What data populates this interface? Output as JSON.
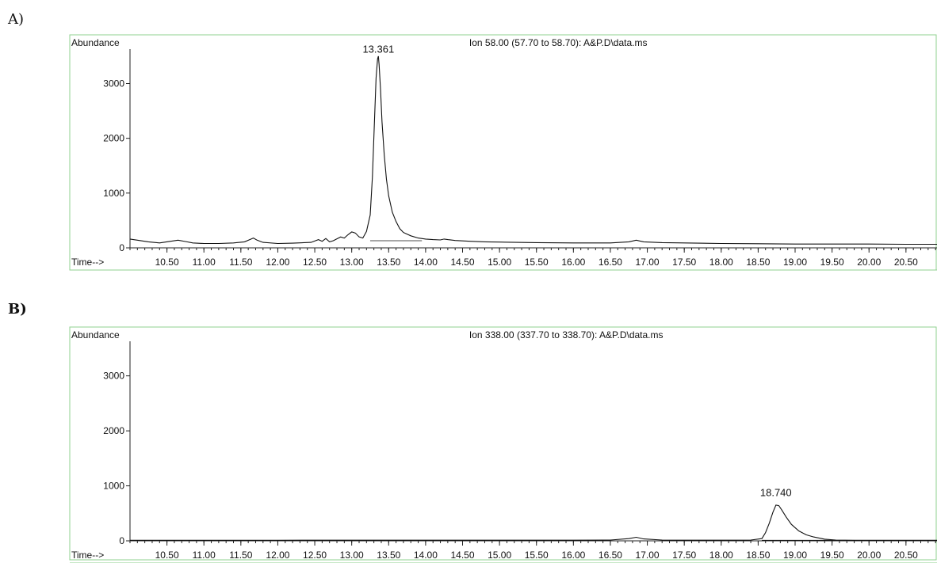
{
  "panels": [
    {
      "label": "A)",
      "chart_data": {
        "type": "line",
        "title": "Ion  58.00 (57.70 to 58.70): A&P.D\\data.ms",
        "ylabel": "Abundance",
        "xlabel": "Time-->",
        "xlim": [
          10.0,
          20.92
        ],
        "ylim": [
          0,
          3600
        ],
        "x_ticks": [
          10.5,
          11.0,
          11.5,
          12.0,
          12.5,
          13.0,
          13.5,
          14.0,
          14.5,
          15.0,
          15.5,
          16.0,
          16.5,
          17.0,
          17.5,
          18.0,
          18.5,
          19.0,
          19.5,
          20.0,
          20.5
        ],
        "x_tick_labels": [
          "10.50",
          "11.00",
          "11.50",
          "12.00",
          "12.50",
          "13.00",
          "13.50",
          "14.00",
          "14.50",
          "15.00",
          "15.50",
          "16.00",
          "16.50",
          "17.00",
          "17.50",
          "18.00",
          "18.50",
          "19.00",
          "19.50",
          "20.00",
          "20.50"
        ],
        "y_ticks": [
          0,
          1000,
          2000,
          3000
        ],
        "y_tick_labels": [
          "0",
          "1000",
          "2000",
          "3000"
        ],
        "peak_labels": [
          {
            "x": 13.361,
            "y": 3450,
            "text": "13.361"
          }
        ],
        "integration_baseline": {
          "x": [
            13.25,
            13.95
          ],
          "y": [
            130,
            130
          ]
        },
        "series": [
          {
            "x": [
              10.0,
              10.1,
              10.25,
              10.4,
              10.55,
              10.65,
              10.75,
              10.85,
              11.0,
              11.2,
              11.4,
              11.55,
              11.62,
              11.67,
              11.72,
              11.8,
              12.0,
              12.2,
              12.45,
              12.55,
              12.6,
              12.65,
              12.7,
              12.75,
              12.85,
              12.9,
              12.95,
              13.0,
              13.05,
              13.1,
              13.15,
              13.2,
              13.25,
              13.28,
              13.31,
              13.33,
              13.35,
              13.361,
              13.37,
              13.39,
              13.41,
              13.44,
              13.47,
              13.5,
              13.55,
              13.6,
              13.65,
              13.7,
              13.8,
              13.9,
              14.0,
              14.1,
              14.2,
              14.25,
              14.3,
              14.4,
              14.6,
              14.8,
              15.0,
              15.5,
              16.0,
              16.5,
              16.75,
              16.85,
              16.95,
              17.2,
              17.5,
              18.0,
              18.5,
              19.0,
              19.5,
              20.0,
              20.5,
              20.92
            ],
            "y": [
              160,
              140,
              110,
              90,
              120,
              140,
              115,
              90,
              80,
              80,
              90,
              110,
              150,
              180,
              140,
              100,
              80,
              85,
              100,
              150,
              120,
              170,
              110,
              130,
              200,
              180,
              240,
              290,
              270,
              200,
              180,
              300,
              600,
              1300,
              2400,
              3100,
              3450,
              3500,
              3350,
              2900,
              2300,
              1700,
              1250,
              950,
              650,
              480,
              350,
              280,
              220,
              180,
              160,
              150,
              145,
              160,
              150,
              135,
              120,
              110,
              105,
              95,
              90,
              90,
              110,
              140,
              110,
              95,
              90,
              80,
              75,
              70,
              70,
              70,
              65,
              65
            ]
          }
        ]
      }
    },
    {
      "label": "B)",
      "chart_data": {
        "type": "line",
        "title": "Ion 338.00 (337.70 to 338.70): A&P.D\\data.ms",
        "ylabel": "Abundance",
        "xlabel": "Time-->",
        "xlim": [
          10.0,
          20.92
        ],
        "ylim": [
          0,
          3600
        ],
        "x_ticks": [
          10.5,
          11.0,
          11.5,
          12.0,
          12.5,
          13.0,
          13.5,
          14.0,
          14.5,
          15.0,
          15.5,
          16.0,
          16.5,
          17.0,
          17.5,
          18.0,
          18.5,
          19.0,
          19.5,
          20.0,
          20.5
        ],
        "x_tick_labels": [
          "10.50",
          "11.00",
          "11.50",
          "12.00",
          "12.50",
          "13.00",
          "13.50",
          "14.00",
          "14.50",
          "15.00",
          "15.50",
          "16.00",
          "16.50",
          "17.00",
          "17.50",
          "18.00",
          "18.50",
          "19.00",
          "19.50",
          "20.00",
          "20.50"
        ],
        "y_ticks": [
          0,
          1000,
          2000,
          3000
        ],
        "y_tick_labels": [
          "0",
          "1000",
          "2000",
          "3000"
        ],
        "peak_labels": [
          {
            "x": 18.74,
            "y": 700,
            "text": "18.740"
          }
        ],
        "integration_baseline": {
          "x": [
            18.55,
            19.55
          ],
          "y": [
            10,
            10
          ]
        },
        "series": [
          {
            "x": [
              10.0,
              10.5,
              11.0,
              11.5,
              12.0,
              12.5,
              13.0,
              13.5,
              14.0,
              14.5,
              15.0,
              15.5,
              16.0,
              16.5,
              16.75,
              16.85,
              16.95,
              17.2,
              17.5,
              18.0,
              18.4,
              18.55,
              18.6,
              18.65,
              18.7,
              18.74,
              18.78,
              18.82,
              18.88,
              18.95,
              19.05,
              19.15,
              19.25,
              19.4,
              19.55,
              19.8,
              20.2,
              20.5,
              20.92
            ],
            "y": [
              10,
              10,
              10,
              10,
              10,
              12,
              12,
              12,
              12,
              12,
              12,
              12,
              12,
              15,
              40,
              65,
              35,
              15,
              12,
              12,
              15,
              40,
              150,
              320,
              520,
              650,
              640,
              560,
              430,
              300,
              180,
              110,
              70,
              30,
              15,
              10,
              10,
              10,
              10
            ]
          }
        ]
      }
    }
  ]
}
